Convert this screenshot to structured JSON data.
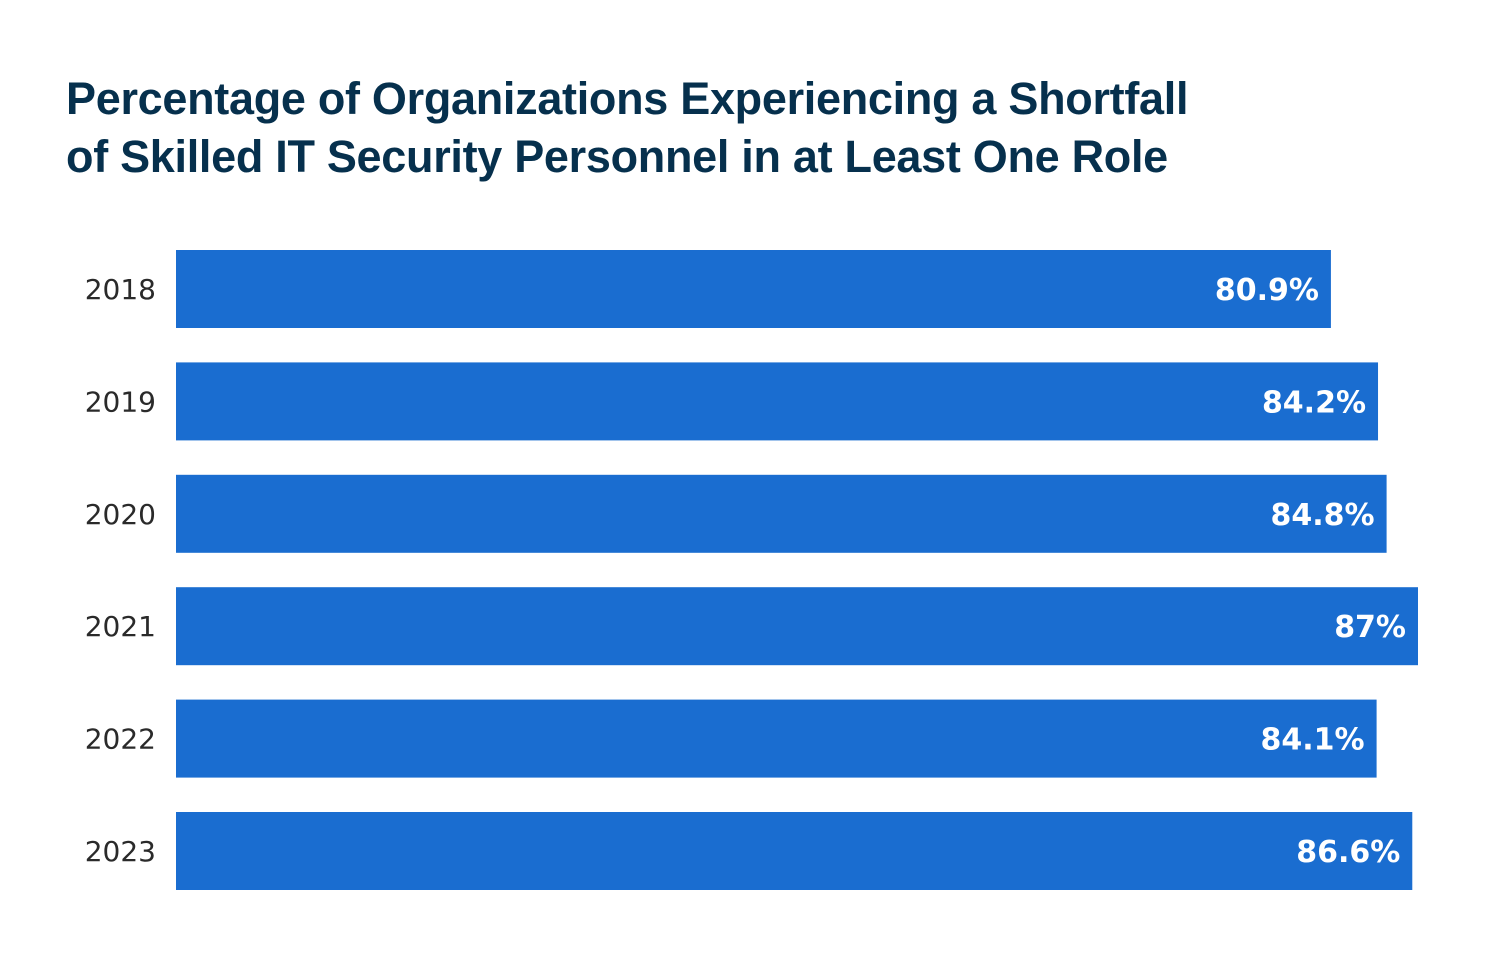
{
  "chart_data": {
    "type": "bar",
    "orientation": "horizontal",
    "title": "Percentage of Organizations Experiencing a Shortfall of Skilled IT Security Personnel in at Least One Role",
    "title_lines": [
      "Percentage of Organizations Experiencing a Shortfall",
      "of Skilled IT Security Personnel in at Least One Role"
    ],
    "categories": [
      "2018",
      "2019",
      "2020",
      "2021",
      "2022",
      "2023"
    ],
    "values": [
      80.9,
      84.2,
      84.8,
      87,
      84.1,
      86.6
    ],
    "value_labels": [
      "80.9%",
      "84.2%",
      "84.8%",
      "87%",
      "84.1%",
      "86.6%"
    ],
    "xlabel": "",
    "ylabel": "",
    "xlim": [
      0,
      87
    ],
    "grid": false,
    "legend": "none",
    "colors": {
      "bar": "#1a6dd0",
      "title": "#06304d",
      "label": "#2a2a2a",
      "value_label": "#ffffff"
    }
  }
}
